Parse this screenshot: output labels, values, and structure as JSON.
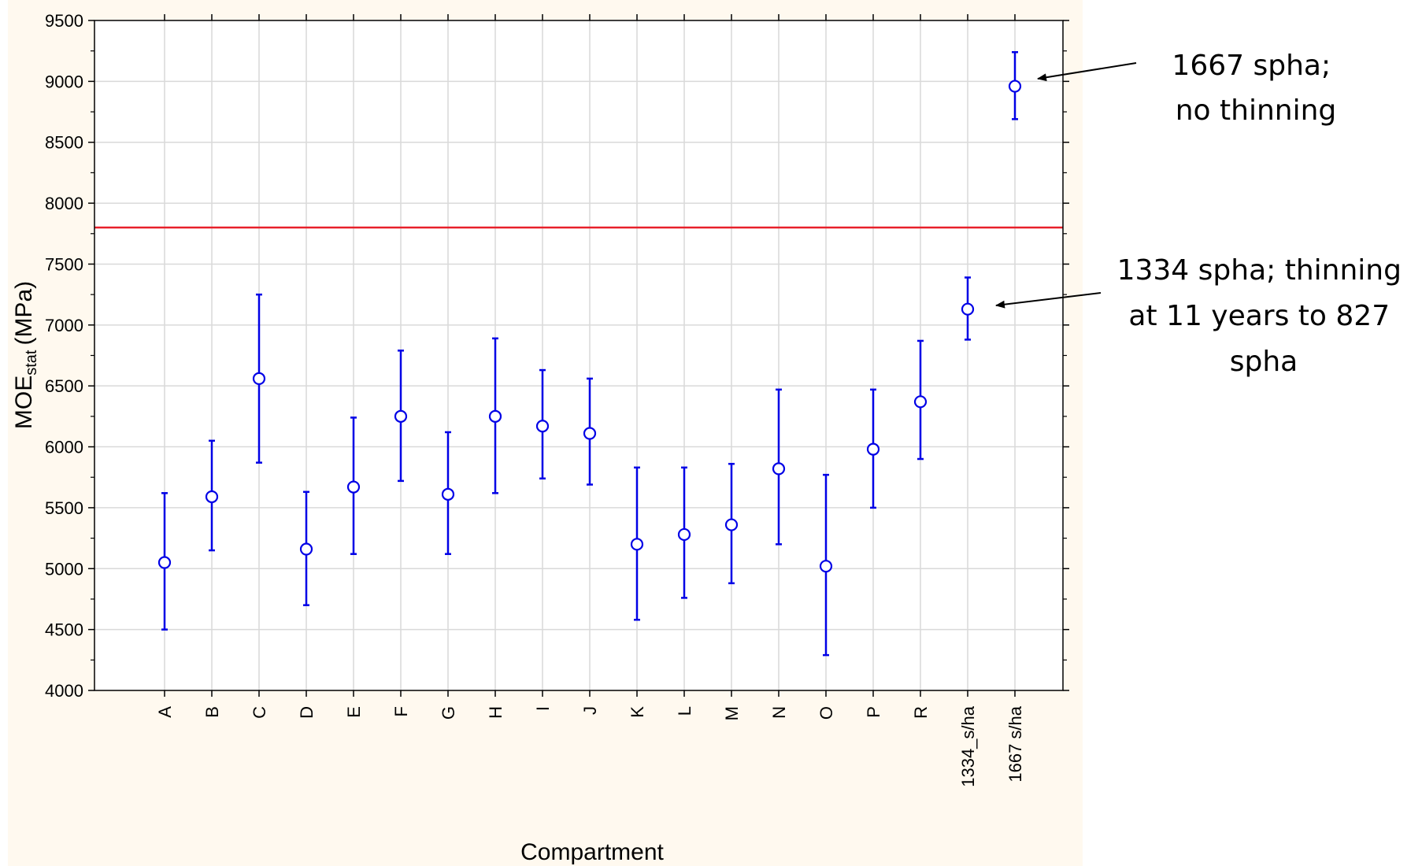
{
  "chart_data": {
    "type": "scatter",
    "title": "",
    "xlabel": "Compartment",
    "ylabel": "MOE",
    "ylabel_sub": "stat",
    "ylabel_unit": "(MPa)",
    "ylim": [
      4000,
      9500
    ],
    "yticks": [
      4000,
      4500,
      5000,
      5500,
      6000,
      6500,
      7000,
      7500,
      8000,
      8500,
      9000,
      9500
    ],
    "grid": true,
    "reference_line": {
      "y": 7800,
      "color": "#e8202a"
    },
    "marker_color": "#0000e6",
    "categories": [
      "A",
      "B",
      "C",
      "D",
      "E",
      "F",
      "G",
      "H",
      "I",
      "J",
      "K",
      "L",
      "M",
      "N",
      "O",
      "P",
      "R",
      "1334_s/ha",
      "1667 s/ha"
    ],
    "series": [
      {
        "mean": [
          5050,
          5590,
          6560,
          5160,
          5670,
          6250,
          5610,
          6250,
          6170,
          6110,
          5200,
          5280,
          5360,
          5820,
          5020,
          5980,
          6370,
          7130,
          8960
        ],
        "lower": [
          4500,
          5150,
          5870,
          4700,
          5120,
          5720,
          5120,
          5620,
          5740,
          5690,
          4580,
          4760,
          4880,
          5200,
          4290,
          5500,
          5900,
          6880,
          8690
        ],
        "upper": [
          5620,
          6050,
          7250,
          5630,
          6240,
          6790,
          6120,
          6890,
          6630,
          6560,
          5830,
          5830,
          5860,
          6470,
          5770,
          6470,
          6870,
          7390,
          9240
        ]
      }
    ],
    "annotations": [
      {
        "lines": [
          "1667 spha;",
          "no thinning"
        ],
        "target_category": "1667 s/ha"
      },
      {
        "lines": [
          "1334 spha; thinning",
          "at 11 years to 827",
          "spha"
        ],
        "target_category": "1334_s/ha"
      }
    ]
  }
}
